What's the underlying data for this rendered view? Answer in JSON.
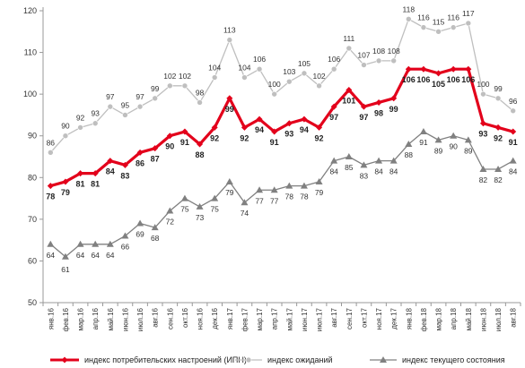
{
  "chart_data": {
    "type": "line",
    "title": "",
    "xlabel": "",
    "ylabel": "",
    "ylim": [
      50,
      120
    ],
    "yticks": [
      "50",
      "60",
      "70",
      "80",
      "90",
      "100",
      "110",
      "120"
    ],
    "grid": false,
    "legend_placement": "bottom",
    "categories": [
      "янв.16",
      "фев.16",
      "мар.16",
      "апр.16",
      "май.16",
      "июн.16",
      "июл.16",
      "авг.16",
      "сен.16",
      "окт.16",
      "ноя.16",
      "дек.16",
      "янв.17",
      "фев.17",
      "мар.17",
      "апр.17",
      "май.17",
      "июн.17",
      "июл.17",
      "авг.17",
      "сен.17",
      "окт.17",
      "ноя.17",
      "дек.17",
      "янв.18",
      "фев.18",
      "мар.18",
      "апр.18",
      "май.18",
      "июн.18",
      "июл.18",
      "авг.18"
    ],
    "series": [
      {
        "name": "индекс потребительских настроений (ИПН)",
        "color": "#e3001b",
        "marker": "diamond",
        "values": [
          78,
          79,
          81,
          81,
          84,
          83,
          86,
          87,
          90,
          91,
          88,
          92,
          99,
          92,
          94,
          91,
          93,
          94,
          92,
          97,
          101,
          97,
          98,
          99,
          106,
          106,
          105,
          106,
          106,
          93,
          92,
          91
        ]
      },
      {
        "name": "индекс ожиданий",
        "color": "#bfbfbf",
        "marker": "circle",
        "values": [
          86,
          90,
          92,
          93,
          97,
          95,
          97,
          99,
          102,
          102,
          98,
          104,
          113,
          104,
          106,
          100,
          103,
          105,
          102,
          106,
          111,
          107,
          108,
          108,
          118,
          116,
          115,
          116,
          117,
          100,
          99,
          96
        ]
      },
      {
        "name": "индекс текущего состояния",
        "color": "#808080",
        "marker": "triangle",
        "values": [
          64,
          61,
          64,
          64,
          64,
          66,
          69,
          68,
          72,
          75,
          73,
          75,
          79,
          74,
          77,
          77,
          78,
          78,
          79,
          84,
          85,
          83,
          84,
          84,
          88,
          91,
          89,
          90,
          89,
          82,
          82,
          84
        ]
      }
    ]
  },
  "colors": {
    "axis": "#999999",
    "text": "#333333"
  }
}
